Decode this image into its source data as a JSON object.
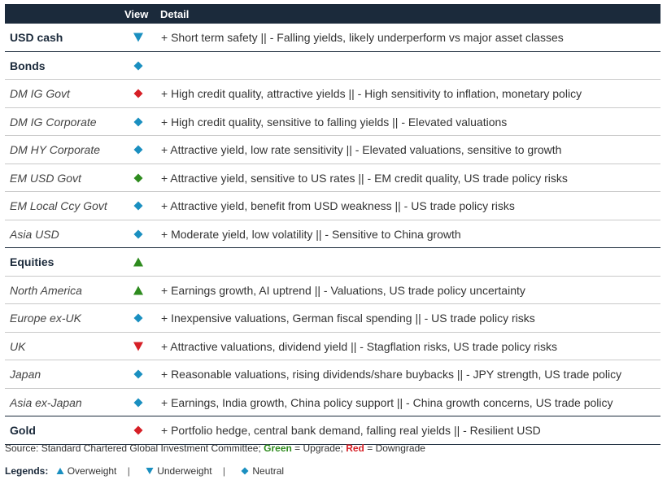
{
  "header": {
    "view": "View",
    "detail": "Detail"
  },
  "colors": {
    "header_bg": "#1b2a3b",
    "teal": "#1a8fc0",
    "green": "#2e8b1e",
    "red": "#d61f26"
  },
  "rows": [
    {
      "label": "USD cash",
      "kind": "category",
      "view": "underweight",
      "color": "teal",
      "detail": "+ Short term safety || - Falling yields, likely underperform vs major asset classes",
      "end": true
    },
    {
      "label": "Bonds",
      "kind": "category",
      "view": "neutral",
      "color": "teal",
      "detail": ""
    },
    {
      "label": "DM IG Govt",
      "kind": "sub",
      "view": "neutral",
      "color": "red",
      "detail": "+ High credit quality, attractive yields || - High sensitivity to inflation, monetary policy"
    },
    {
      "label": "DM IG Corporate",
      "kind": "sub",
      "view": "neutral",
      "color": "teal",
      "detail": "+ High credit quality, sensitive to falling yields || - Elevated valuations"
    },
    {
      "label": "DM HY Corporate",
      "kind": "sub",
      "view": "neutral",
      "color": "teal",
      "detail": "+ Attractive yield, low rate sensitivity || - Elevated valuations, sensitive to growth"
    },
    {
      "label": "EM USD Govt",
      "kind": "sub",
      "view": "neutral",
      "color": "green",
      "detail": "+ Attractive yield, sensitive to US rates || - EM credit quality, US trade policy risks"
    },
    {
      "label": "EM Local Ccy Govt",
      "kind": "sub",
      "view": "neutral",
      "color": "teal",
      "detail": "+ Attractive yield, benefit from USD weakness || - US trade policy risks"
    },
    {
      "label": "Asia USD",
      "kind": "sub",
      "view": "neutral",
      "color": "teal",
      "detail": "+ Moderate yield, low volatility || - Sensitive to China growth",
      "end": true
    },
    {
      "label": "Equities",
      "kind": "category",
      "view": "overweight",
      "color": "green",
      "detail": ""
    },
    {
      "label": "North America",
      "kind": "sub",
      "view": "overweight",
      "color": "green",
      "detail": "+ Earnings growth, AI uptrend || - Valuations, US trade policy uncertainty"
    },
    {
      "label": "Europe ex-UK",
      "kind": "sub",
      "view": "neutral",
      "color": "teal",
      "detail": "+ Inexpensive valuations, German fiscal spending || - US trade policy risks"
    },
    {
      "label": "UK",
      "kind": "sub",
      "view": "underweight",
      "color": "red",
      "detail": "+ Attractive valuations, dividend yield || - Stagflation risks, US trade policy risks"
    },
    {
      "label": "Japan",
      "kind": "sub",
      "view": "neutral",
      "color": "teal",
      "detail": "+ Reasonable valuations, rising dividends/share buybacks || - JPY strength, US trade policy"
    },
    {
      "label": "Asia ex-Japan",
      "kind": "sub",
      "view": "neutral",
      "color": "teal",
      "detail": "+ Earnings, India growth, China policy support || - China growth concerns, US trade policy",
      "end": true
    },
    {
      "label": "Gold",
      "kind": "category",
      "view": "neutral",
      "color": "red",
      "detail": "+ Portfolio hedge, central bank demand, falling real yields || - Resilient USD",
      "end": true
    }
  ],
  "source": {
    "prefix": "Source: Standard Chartered Global Investment Committee; ",
    "green": "Green",
    "mid": " = Upgrade; ",
    "red": "Red",
    "suffix": " = Downgrade"
  },
  "legend": {
    "title": "Legends:",
    "overweight": "Overweight",
    "underweight": "Underweight",
    "neutral": "Neutral",
    "separator": "|"
  }
}
